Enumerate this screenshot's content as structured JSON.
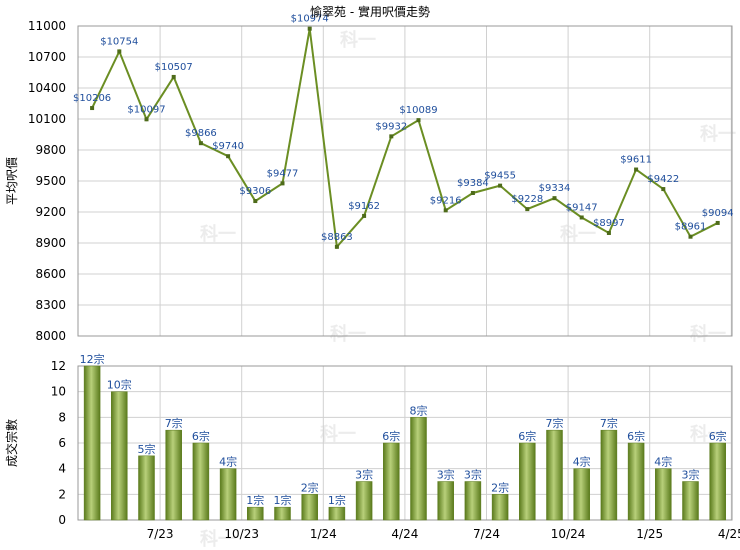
{
  "title": "愉翠苑 - 實用呎價走勢",
  "watermark_text": "科一",
  "colors": {
    "line": "#6b8e23",
    "marker": "#4e6b1a",
    "bar_dark": "#5a7a1c",
    "bar_light": "#b8d07a",
    "grid": "#d0d0d0",
    "label": "#1f4e9c"
  },
  "chart_data": [
    {
      "type": "line",
      "ylabel": "平均呎價",
      "ylim": [
        8000,
        11000
      ],
      "yticks": [
        8000,
        8300,
        8600,
        8900,
        9200,
        9500,
        9800,
        10100,
        10400,
        10700,
        11000
      ],
      "grid": true,
      "points": [
        10206,
        10754,
        10097,
        10507,
        9866,
        9740,
        9306,
        9477,
        10974,
        8863,
        9162,
        9932,
        10089,
        9216,
        9384,
        9455,
        9228,
        9334,
        9147,
        8997,
        9611,
        9422,
        8961,
        9094
      ],
      "labels": [
        "$10206",
        "$10754",
        "$10097",
        "$10507",
        "$9866",
        "$9740",
        "$9306",
        "$9477",
        "$10974",
        "$8863",
        "$9162",
        "$9932",
        "$10089",
        "$9216",
        "$9384",
        "$9455",
        "$9228",
        "$9334",
        "$9147",
        "$8997",
        "$9611",
        "$9422",
        "$8961",
        "$9094"
      ]
    },
    {
      "type": "bar",
      "ylabel": "成交宗數",
      "ylim": [
        0,
        12
      ],
      "yticks": [
        0,
        2,
        4,
        6,
        8,
        10,
        12
      ],
      "grid": true,
      "values": [
        12,
        10,
        5,
        7,
        6,
        4,
        1,
        1,
        2,
        1,
        3,
        6,
        8,
        3,
        3,
        2,
        6,
        7,
        4,
        7,
        6,
        4,
        3,
        6
      ],
      "labels": [
        "12宗",
        "10宗",
        "5宗",
        "7宗",
        "6宗",
        "4宗",
        "1宗",
        "1宗",
        "2宗",
        "1宗",
        "3宗",
        "6宗",
        "8宗",
        "3宗",
        "3宗",
        "2宗",
        "6宗",
        "7宗",
        "4宗",
        "7宗",
        "6宗",
        "4宗",
        "3宗",
        "6宗"
      ],
      "x_ticks": [
        {
          "index": 2,
          "label": "7/23"
        },
        {
          "index": 5,
          "label": "10/23"
        },
        {
          "index": 8,
          "label": "1/24"
        },
        {
          "index": 11,
          "label": "4/24"
        },
        {
          "index": 14,
          "label": "7/24"
        },
        {
          "index": 17,
          "label": "10/24"
        },
        {
          "index": 20,
          "label": "1/25"
        },
        {
          "index": 23,
          "label": "4/25"
        }
      ]
    }
  ]
}
